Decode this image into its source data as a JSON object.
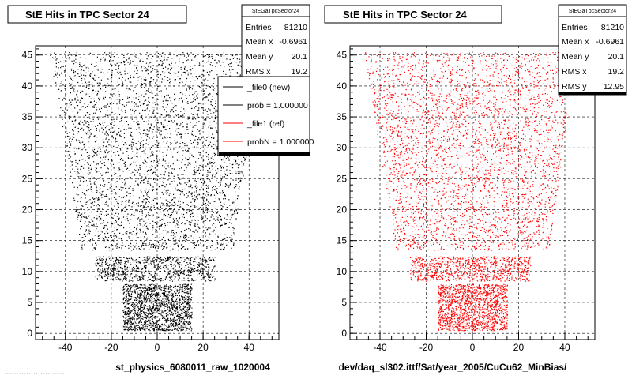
{
  "panels": [
    {
      "title": "StE Hits in TPC Sector 24",
      "stats_title": "StEGaTpcSector24",
      "stats": [
        {
          "label": "Entries",
          "value": "81210"
        },
        {
          "label": "Mean x",
          "value": "-0.6961"
        },
        {
          "label": "Mean y",
          "value": "20.1"
        },
        {
          "label": "RMS x",
          "value": "19.2"
        }
      ],
      "legend": [
        {
          "label": "_file0 (new)",
          "color": "#000000"
        },
        {
          "label": "prob = 1.000000",
          "color": "#000000"
        },
        {
          "label": "_file1 (ref)",
          "color": "#ff0000"
        },
        {
          "label": "probN = 1.000000",
          "color": "#ff0000"
        }
      ],
      "caption": "st_physics_6080011_raw_1020004",
      "point_color": "#000000"
    },
    {
      "title": "StE Hits in TPC Sector 24",
      "stats_title": "StEGaTpcSector24",
      "stats": [
        {
          "label": "Entries",
          "value": "81210"
        },
        {
          "label": "Mean x",
          "value": "-0.6961"
        },
        {
          "label": "Mean y",
          "value": "20.1"
        },
        {
          "label": "RMS x",
          "value": "19.2"
        },
        {
          "label": "RMS y",
          "value": "12.95"
        }
      ],
      "caption": "dev/daq_sl302.ittf/Sat/year_2005/CuCu62_MinBias/",
      "point_color": "#ff0000"
    }
  ],
  "chart_data": [
    {
      "type": "scatter",
      "title": "StE Hits in TPC Sector 24",
      "xlabel": "st_physics_6080011_raw_1020004",
      "ylabel": "",
      "xlim": [
        -53,
        53
      ],
      "ylim": [
        -1,
        46.5
      ],
      "xticks": [
        -40,
        -20,
        0,
        20,
        40
      ],
      "yticks": [
        0,
        5,
        10,
        15,
        20,
        25,
        30,
        35,
        40,
        45
      ],
      "grid": true,
      "entries": 81210,
      "mean_x": -0.6961,
      "mean_y": 20.1,
      "rms_x": 19.2,
      "color": "#000000",
      "region_envelope": [
        {
          "y_range": [
            0.5,
            8.0
          ],
          "x_range": [
            -15,
            15
          ]
        },
        {
          "y_range": [
            8.5,
            12.5
          ],
          "x_range": [
            -27,
            25
          ]
        },
        {
          "y_range": [
            13.5,
            45.5
          ],
          "x_range_bottom": [
            -33,
            33
          ],
          "x_range_top": [
            -47,
            45
          ]
        }
      ]
    },
    {
      "type": "scatter",
      "title": "StE Hits in TPC Sector 24",
      "xlabel": "dev/daq_sl302.ittf/Sat/year_2005/CuCu62_MinBias/",
      "ylabel": "",
      "xlim": [
        -53,
        53
      ],
      "ylim": [
        -1,
        46.5
      ],
      "xticks": [
        -40,
        -20,
        0,
        20,
        40
      ],
      "yticks": [
        0,
        5,
        10,
        15,
        20,
        25,
        30,
        35,
        40,
        45
      ],
      "grid": true,
      "entries": 81210,
      "mean_x": -0.6961,
      "mean_y": 20.1,
      "rms_x": 19.2,
      "rms_y": 12.95,
      "color": "#ff0000",
      "region_envelope": [
        {
          "y_range": [
            0.5,
            8.0
          ],
          "x_range": [
            -15,
            15
          ]
        },
        {
          "y_range": [
            8.5,
            12.5
          ],
          "x_range": [
            -27,
            25
          ]
        },
        {
          "y_range": [
            13.5,
            45.5
          ],
          "x_range_bottom": [
            -33,
            33
          ],
          "x_range_top": [
            -47,
            45
          ]
        }
      ]
    }
  ]
}
